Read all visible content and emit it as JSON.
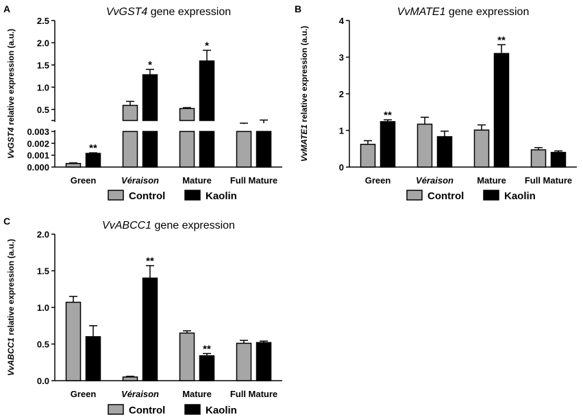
{
  "chart_data": [
    {
      "panel": "A",
      "type": "bar",
      "title_italic": "VvGST4",
      "title_rest": " gene expression",
      "ylabel_italic": "VvGST4",
      "ylabel_rest": " relative expression (a.u.)",
      "categories": [
        "Green",
        "Véraison",
        "Mature",
        "Full Mature"
      ],
      "italic_categories": [
        "Véraison"
      ],
      "broken_axis": true,
      "upper_ylim": [
        0.25,
        2.5
      ],
      "upper_ticks": [
        "0.5",
        "1.0",
        "1.5",
        "2.0",
        "2.5"
      ],
      "lower_ylim": [
        0,
        0.003
      ],
      "lower_ticks": [
        "0.000",
        "0.001",
        "0.002",
        "0.003"
      ],
      "series": [
        {
          "name": "Control",
          "color": "#a6a6a6",
          "values": [
            0.0003,
            0.59,
            0.52,
            0.17
          ],
          "errors": [
            5e-05,
            0.09,
            0.02,
            0.02
          ]
        },
        {
          "name": "Kaolin",
          "color": "#000000",
          "values": [
            0.00115,
            1.28,
            1.59,
            0.19
          ],
          "errors": [
            5e-05,
            0.12,
            0.24,
            0.07
          ]
        }
      ],
      "annotations": [
        {
          "series": 1,
          "category": 0,
          "label": "**"
        },
        {
          "series": 1,
          "category": 1,
          "label": "*"
        },
        {
          "series": 1,
          "category": 2,
          "label": "*"
        }
      ]
    },
    {
      "panel": "B",
      "type": "bar",
      "title_italic": "VvMATE1",
      "title_rest": " gene expression",
      "ylabel_italic": "VvMATE1",
      "ylabel_rest": " relative expression (a.u.)",
      "categories": [
        "Green",
        "Véraison",
        "Mature",
        "Full Mature"
      ],
      "italic_categories": [
        "Véraison"
      ],
      "ylim": [
        0,
        4
      ],
      "yticks": [
        "0",
        "1",
        "2",
        "3",
        "4"
      ],
      "series": [
        {
          "name": "Control",
          "color": "#a6a6a6",
          "values": [
            0.62,
            1.17,
            1.01,
            0.47
          ],
          "errors": [
            0.1,
            0.19,
            0.14,
            0.06
          ]
        },
        {
          "name": "Kaolin",
          "color": "#000000",
          "values": [
            1.24,
            0.83,
            3.1,
            0.4
          ],
          "errors": [
            0.05,
            0.15,
            0.24,
            0.04
          ]
        }
      ],
      "annotations": [
        {
          "series": 1,
          "category": 0,
          "label": "**"
        },
        {
          "series": 1,
          "category": 2,
          "label": "**"
        }
      ]
    },
    {
      "panel": "C",
      "type": "bar",
      "title_italic": "VvABCC1",
      "title_rest": " gene expression",
      "ylabel_italic": "VvABCC1",
      "ylabel_rest": " relative expression (a.u.)",
      "categories": [
        "Green",
        "Véraison",
        "Mature",
        "Full Mature"
      ],
      "italic_categories": [
        "Véraison"
      ],
      "ylim": [
        0,
        2.0
      ],
      "yticks": [
        "0.0",
        "0.5",
        "1.0",
        "1.5",
        "2.0"
      ],
      "series": [
        {
          "name": "Control",
          "color": "#a6a6a6",
          "values": [
            1.07,
            0.05,
            0.65,
            0.51
          ],
          "errors": [
            0.08,
            0.01,
            0.03,
            0.04
          ]
        },
        {
          "name": "Kaolin",
          "color": "#000000",
          "values": [
            0.6,
            1.4,
            0.34,
            0.52
          ],
          "errors": [
            0.15,
            0.17,
            0.03,
            0.02
          ]
        }
      ],
      "annotations": [
        {
          "series": 1,
          "category": 1,
          "label": "**"
        },
        {
          "series": 1,
          "category": 2,
          "label": "**"
        }
      ]
    }
  ],
  "legend": {
    "control_label": "Control",
    "kaolin_label": "Kaolin"
  }
}
